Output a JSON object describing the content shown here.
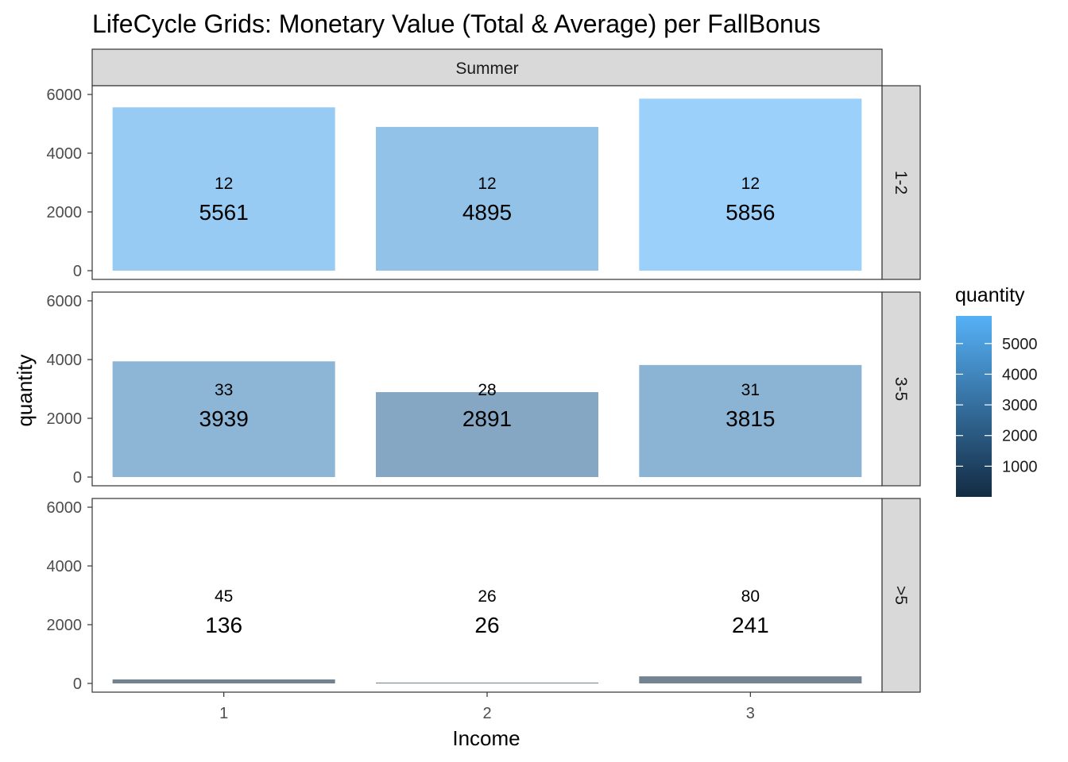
{
  "chart_data": {
    "type": "bar",
    "title": "LifeCycle Grids: Monetary Value (Total & Average) per FallBonus",
    "xlabel": "Income",
    "ylabel": "quantity",
    "categories": [
      "1",
      "2",
      "3"
    ],
    "column_facets": [
      "Summer"
    ],
    "ylim": [
      0,
      6000
    ],
    "yticks": [
      0,
      2000,
      4000,
      6000
    ],
    "grid": false,
    "panels": [
      {
        "facet_column": "Summer",
        "facet_row": "1-2",
        "values": [
          5561,
          4895,
          5856
        ],
        "value_labels": [
          "5561",
          "4895",
          "5856"
        ],
        "count_labels": [
          "12",
          "12",
          "12"
        ],
        "label_heights": [
          2000,
          2000,
          2000
        ]
      },
      {
        "facet_column": "Summer",
        "facet_row": "3-5",
        "values": [
          3939,
          2891,
          3815
        ],
        "value_labels": [
          "3939",
          "2891",
          "3815"
        ],
        "count_labels": [
          "33",
          "28",
          "31"
        ],
        "label_heights": [
          2000,
          2000,
          2000
        ]
      },
      {
        "facet_column": "Summer",
        "facet_row": ">5",
        "values": [
          136,
          26,
          241
        ],
        "value_labels": [
          "136",
          "26",
          "241"
        ],
        "count_labels": [
          "45",
          "26",
          "80"
        ],
        "label_heights": [
          2000,
          2000,
          2000
        ]
      }
    ],
    "legend": {
      "title": "quantity",
      "position": "right",
      "labels": [
        "5000",
        "4000",
        "3000",
        "2000",
        "1000"
      ],
      "values": [
        5000,
        4000,
        3000,
        2000,
        1000
      ],
      "range": [
        0,
        5900
      ],
      "color_low": "#132b43",
      "color_high": "#56b1f7"
    },
    "bar_alpha": 0.6
  }
}
